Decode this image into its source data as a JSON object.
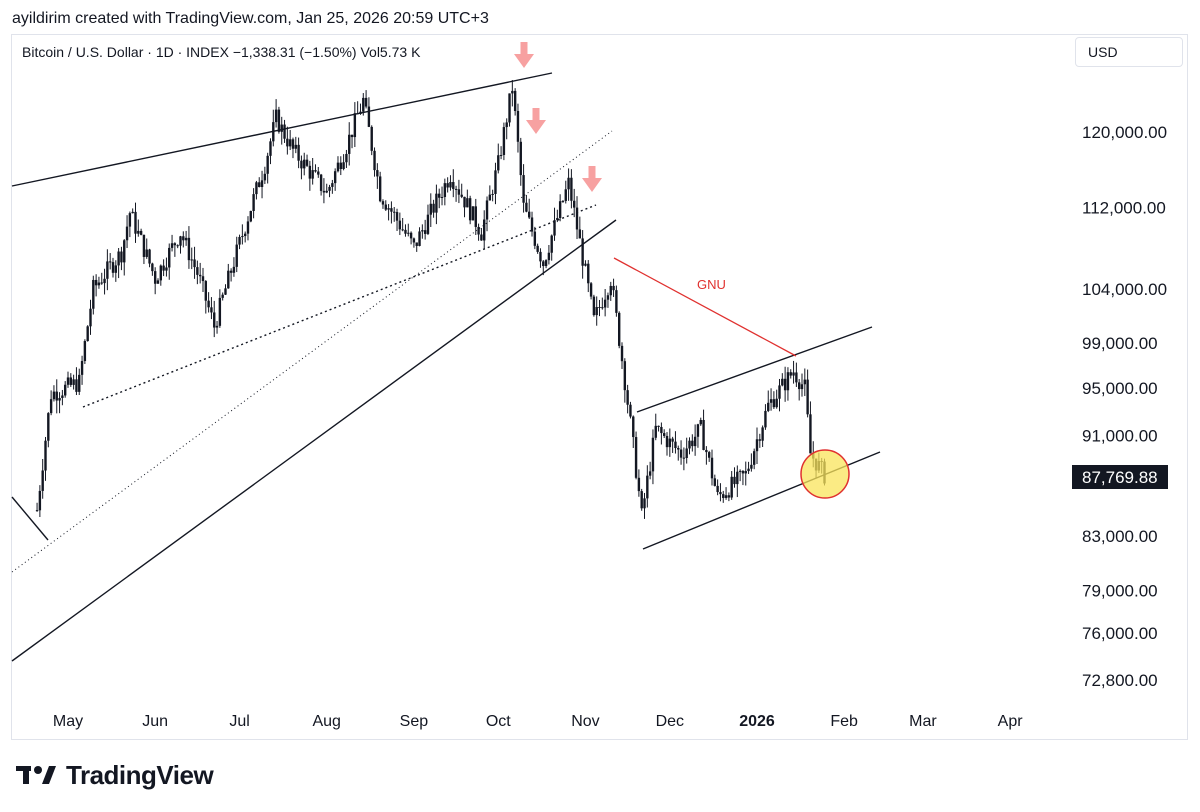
{
  "header": {
    "attribution": "ayildirim created with TradingView.com, Jan 25, 2026 20:59 UTC+3"
  },
  "legend": {
    "text": "Bitcoin / U.S. Dollar · 1D · INDEX  −1,338.31 (−1.50%)  Vol5.73 K"
  },
  "toolbar": {
    "currency": "USD"
  },
  "brand": {
    "name": "TradingView",
    "icon": "tradingview-logo-icon"
  },
  "colors": {
    "candles": "#131722",
    "trendline": "#131722",
    "red_line": "#e0312f",
    "arrow": "#f7a1a1",
    "highlight_fill": "#f9e45b",
    "highlight_stroke": "#e0312f",
    "price_tag_bg": "#131722"
  },
  "chart_data": {
    "type": "candlestick",
    "title": "Bitcoin / U.S. Dollar · 1D · INDEX",
    "y_scale": "log",
    "y_ticks": [
      120000,
      112000,
      104000,
      99000,
      95000,
      91000,
      83000,
      79000,
      76000,
      72800
    ],
    "y_tick_labels": [
      "120,000.00",
      "112,000.00",
      "104,000.00",
      "99,000.00",
      "95,000.00",
      "91,000.00",
      "83,000.00",
      "79,000.00",
      "76,000.00",
      "72,800.00"
    ],
    "x_ticks": [
      "May",
      "Jun",
      "Jul",
      "Aug",
      "Sep",
      "Oct",
      "Nov",
      "Dec",
      "2026",
      "Feb",
      "Mar",
      "Apr"
    ],
    "x_tick_dates": [
      "2025-05-01",
      "2025-06-01",
      "2025-07-01",
      "2025-08-01",
      "2025-09-01",
      "2025-10-01",
      "2025-11-01",
      "2025-12-01",
      "2026-01-01",
      "2026-02-01",
      "2026-03-01",
      "2026-04-01"
    ],
    "last_price": 87769.88,
    "last_price_label": "87,769.88",
    "price_path": [
      [
        "2025-04-20",
        85000
      ],
      [
        "2025-04-25",
        94500
      ],
      [
        "2025-05-05",
        95500
      ],
      [
        "2025-05-10",
        104000
      ],
      [
        "2025-05-20",
        107500
      ],
      [
        "2025-05-23",
        111500
      ],
      [
        "2025-06-01",
        105000
      ],
      [
        "2025-06-10",
        109500
      ],
      [
        "2025-06-16",
        105500
      ],
      [
        "2025-06-22",
        100500
      ],
      [
        "2025-06-30",
        107500
      ],
      [
        "2025-07-10",
        116500
      ],
      [
        "2025-07-14",
        121500
      ],
      [
        "2025-07-20",
        118000
      ],
      [
        "2025-08-01",
        113500
      ],
      [
        "2025-08-08",
        118500
      ],
      [
        "2025-08-14",
        123500
      ],
      [
        "2025-08-20",
        113500
      ],
      [
        "2025-09-01",
        108000
      ],
      [
        "2025-09-14",
        115500
      ],
      [
        "2025-09-25",
        109500
      ],
      [
        "2025-10-01",
        116500
      ],
      [
        "2025-10-06",
        125000
      ],
      [
        "2025-10-10",
        112000
      ],
      [
        "2025-10-17",
        106500
      ],
      [
        "2025-10-26",
        114500
      ],
      [
        "2025-11-04",
        101000
      ],
      [
        "2025-11-10",
        105000
      ],
      [
        "2025-11-21",
        84500
      ],
      [
        "2025-11-26",
        91500
      ],
      [
        "2025-12-05",
        89500
      ],
      [
        "2025-12-12",
        91500
      ],
      [
        "2025-12-18",
        86000
      ],
      [
        "2025-12-28",
        87800
      ],
      [
        "2026-01-05",
        93500
      ],
      [
        "2026-01-14",
        96500
      ],
      [
        "2026-01-18",
        95000
      ],
      [
        "2026-01-20",
        89500
      ],
      [
        "2026-01-25",
        87769.88
      ]
    ],
    "annotations": [
      {
        "type": "text",
        "text": "GNU"
      },
      {
        "type": "arrow-down",
        "date": "2025-10-07"
      },
      {
        "type": "arrow-down",
        "date": "2025-10-14"
      },
      {
        "type": "arrow-down",
        "date": "2025-10-31"
      },
      {
        "type": "circle",
        "date": "2026-01-25",
        "price": 87769.88
      }
    ],
    "grid": false,
    "legend": "top-left"
  }
}
